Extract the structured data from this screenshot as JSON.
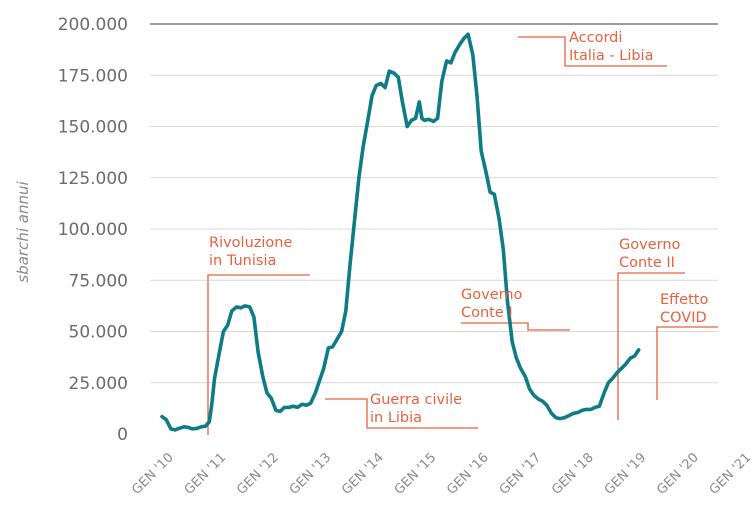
{
  "chart_data": {
    "type": "line",
    "ylabel": "sbarchi annui",
    "xlabel": "",
    "ylim": [
      0,
      200000
    ],
    "grid": true,
    "y_ticks": [
      {
        "value": 0,
        "label": "0"
      },
      {
        "value": 25000,
        "label": "25.000"
      },
      {
        "value": 50000,
        "label": "50.000"
      },
      {
        "value": 75000,
        "label": "75.000"
      },
      {
        "value": 100000,
        "label": "100.000"
      },
      {
        "value": 125000,
        "label": "125.000"
      },
      {
        "value": 150000,
        "label": "150.000"
      },
      {
        "value": 175000,
        "label": "175.000"
      },
      {
        "value": 200000,
        "label": "200.000"
      }
    ],
    "x_ticks": [
      "GEN '10",
      "GEN '11",
      "GEN '12",
      "GEN '13",
      "GEN '14",
      "GEN '15",
      "GEN '16",
      "GEN '17",
      "GEN '18",
      "GEN '19",
      "GEN '20",
      "GEN '21"
    ],
    "series": [
      {
        "color": "#0e7c86",
        "points": [
          [
            2010.0,
            8500
          ],
          [
            2010.08,
            7000
          ],
          [
            2010.17,
            2500
          ],
          [
            2010.25,
            2000
          ],
          [
            2010.33,
            2800
          ],
          [
            2010.42,
            3500
          ],
          [
            2010.5,
            3200
          ],
          [
            2010.58,
            2500
          ],
          [
            2010.67,
            2800
          ],
          [
            2010.75,
            3500
          ],
          [
            2010.83,
            3800
          ],
          [
            2010.9,
            6000
          ],
          [
            2010.95,
            15000
          ],
          [
            2011.0,
            27000
          ],
          [
            2011.08,
            38000
          ],
          [
            2011.17,
            50000
          ],
          [
            2011.25,
            53000
          ],
          [
            2011.33,
            60000
          ],
          [
            2011.42,
            62000
          ],
          [
            2011.5,
            61500
          ],
          [
            2011.58,
            62500
          ],
          [
            2011.67,
            62000
          ],
          [
            2011.75,
            57000
          ],
          [
            2011.83,
            40000
          ],
          [
            2011.92,
            28000
          ],
          [
            2012.0,
            20000
          ],
          [
            2012.08,
            17500
          ],
          [
            2012.17,
            11500
          ],
          [
            2012.25,
            11000
          ],
          [
            2012.33,
            13000
          ],
          [
            2012.42,
            13000
          ],
          [
            2012.5,
            13500
          ],
          [
            2012.58,
            13000
          ],
          [
            2012.67,
            14500
          ],
          [
            2012.75,
            14000
          ],
          [
            2012.83,
            15000
          ],
          [
            2012.92,
            20000
          ],
          [
            2013.0,
            26000
          ],
          [
            2013.08,
            32000
          ],
          [
            2013.17,
            42000
          ],
          [
            2013.25,
            42500
          ],
          [
            2013.33,
            46000
          ],
          [
            2013.42,
            50000
          ],
          [
            2013.5,
            60000
          ],
          [
            2013.58,
            82000
          ],
          [
            2013.67,
            105000
          ],
          [
            2013.75,
            125000
          ],
          [
            2013.83,
            140000
          ],
          [
            2013.92,
            153000
          ],
          [
            2014.0,
            165000
          ],
          [
            2014.08,
            170000
          ],
          [
            2014.17,
            171000
          ],
          [
            2014.25,
            169000
          ],
          [
            2014.33,
            177000
          ],
          [
            2014.42,
            176000
          ],
          [
            2014.5,
            174000
          ],
          [
            2014.58,
            162000
          ],
          [
            2014.67,
            150000
          ],
          [
            2014.75,
            153000
          ],
          [
            2014.83,
            154000
          ],
          [
            2014.9,
            162000
          ],
          [
            2014.95,
            154000
          ],
          [
            2015.0,
            153000
          ],
          [
            2015.08,
            153500
          ],
          [
            2015.17,
            152500
          ],
          [
            2015.25,
            154000
          ],
          [
            2015.33,
            172000
          ],
          [
            2015.42,
            182000
          ],
          [
            2015.5,
            181000
          ],
          [
            2015.58,
            186000
          ],
          [
            2015.67,
            190000
          ],
          [
            2015.75,
            193000
          ],
          [
            2015.83,
            195000
          ],
          [
            2015.92,
            185000
          ],
          [
            2016.0,
            165000
          ],
          [
            2016.08,
            138000
          ],
          [
            2016.17,
            128000
          ],
          [
            2016.25,
            118000
          ],
          [
            2016.33,
            117000
          ],
          [
            2016.42,
            105000
          ],
          [
            2016.5,
            90000
          ],
          [
            2016.58,
            65000
          ],
          [
            2016.67,
            45000
          ],
          [
            2016.75,
            37000
          ],
          [
            2016.83,
            32000
          ],
          [
            2016.92,
            28000
          ],
          [
            2017.0,
            22000
          ],
          [
            2017.08,
            19000
          ],
          [
            2017.17,
            17000
          ],
          [
            2017.25,
            16000
          ],
          [
            2017.33,
            14000
          ],
          [
            2017.42,
            10000
          ],
          [
            2017.5,
            8000
          ],
          [
            2017.58,
            7500
          ],
          [
            2017.67,
            8000
          ],
          [
            2017.75,
            9000
          ],
          [
            2017.83,
            10000
          ],
          [
            2017.92,
            10500
          ],
          [
            2018.0,
            11500
          ],
          [
            2018.08,
            12000
          ],
          [
            2018.17,
            12000
          ],
          [
            2018.25,
            13000
          ],
          [
            2018.33,
            13500
          ],
          [
            2018.42,
            20000
          ],
          [
            2018.5,
            25000
          ],
          [
            2018.58,
            27000
          ],
          [
            2018.67,
            30000
          ],
          [
            2018.75,
            32000
          ],
          [
            2018.83,
            34000
          ],
          [
            2018.92,
            37000
          ],
          [
            2019.0,
            38000
          ],
          [
            2019.08,
            41000
          ]
        ]
      }
    ],
    "annotations": [
      {
        "lines": [
          "Rivoluzione",
          "in Tunisia"
        ]
      },
      {
        "lines": [
          "Guerra civile",
          "in Libia"
        ]
      },
      {
        "lines": [
          "Accordi",
          "Italia - Libia"
        ]
      },
      {
        "lines": [
          "Governo",
          "Conte I"
        ]
      },
      {
        "lines": [
          "Governo",
          "Conte II"
        ]
      },
      {
        "lines": [
          "Effetto",
          "COVID"
        ]
      }
    ]
  },
  "colors": {
    "line": "#0e7c86",
    "annotation": "#e8613f",
    "grid": "#d9d9d9",
    "top_grid": "#9a9a9a"
  }
}
